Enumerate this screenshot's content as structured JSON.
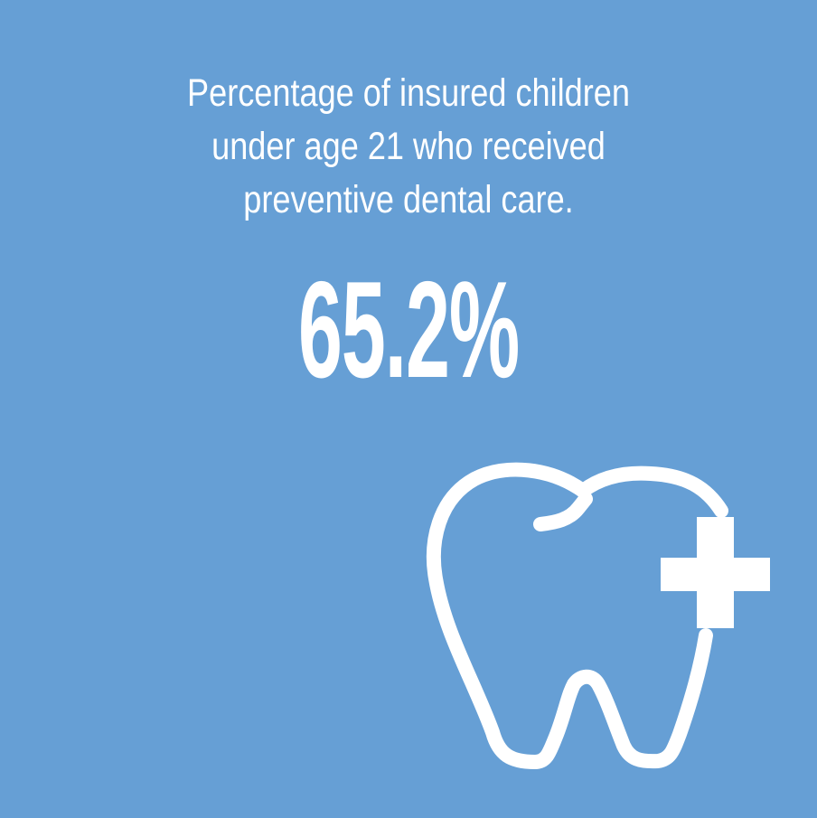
{
  "title_lines": [
    "Percentage of insured children",
    "under age 21 who received",
    "preventive dental care."
  ],
  "stat_value": "65.2%",
  "icon": "tooth-with-plus-icon",
  "colors": {
    "background": "#669fd5",
    "foreground": "#ffffff"
  }
}
